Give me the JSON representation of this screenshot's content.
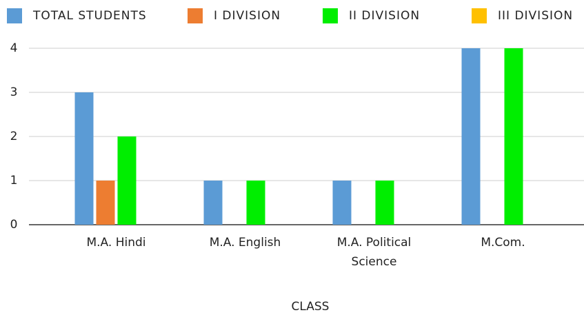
{
  "chart_data": {
    "type": "bar",
    "x_label": "CLASS",
    "categories": [
      "M.A. Hindi",
      "M.A. English",
      "M.A. Political Science",
      "M.Com."
    ],
    "series": [
      {
        "name": "TOTAL STUDENTS",
        "color": "#5b9bd5",
        "values": [
          3,
          1,
          1,
          4
        ]
      },
      {
        "name": "I DIVISION",
        "color": "#ed7d31",
        "values": [
          1,
          0,
          0,
          0
        ]
      },
      {
        "name": "II DIVISION",
        "color": "#00ee00",
        "values": [
          2,
          1,
          1,
          4
        ]
      },
      {
        "name": "III DIVISION",
        "color": "#ffc000",
        "values": [
          0,
          0,
          0,
          0
        ]
      }
    ],
    "ylim": [
      0,
      4
    ],
    "yticks": [
      0,
      1,
      2,
      3,
      4
    ],
    "grid": true,
    "legend": "top"
  }
}
